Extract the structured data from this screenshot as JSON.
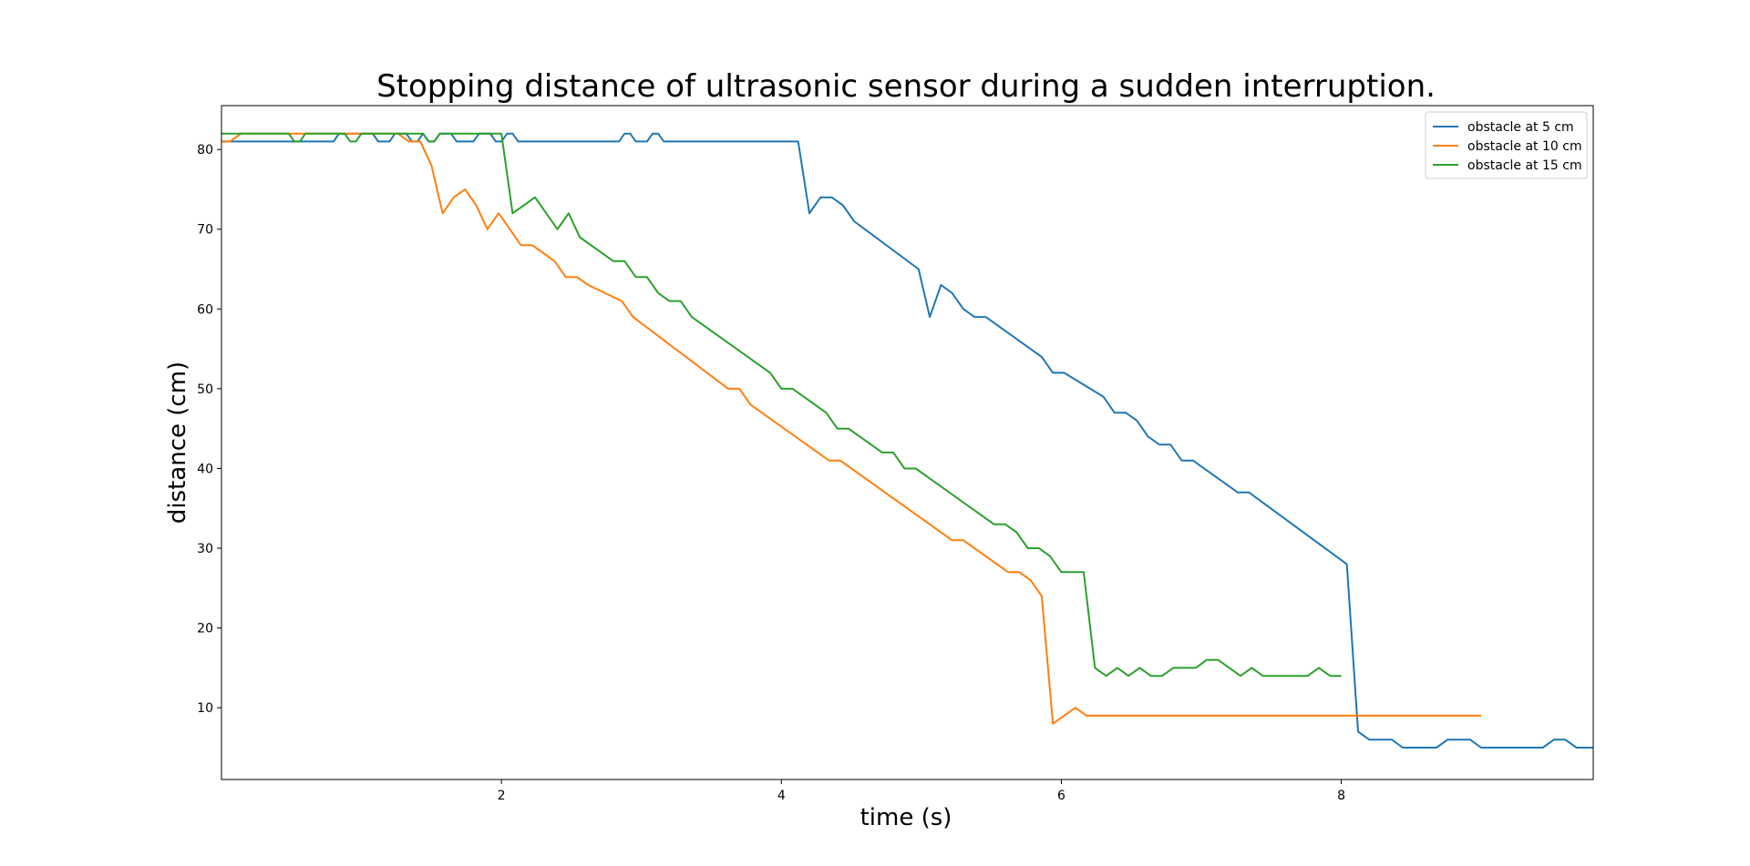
{
  "chart_data": {
    "type": "line",
    "title": "Stopping distance of ultrasonic sensor during a sudden interruption.",
    "xlabel": "time (s)",
    "ylabel": "distance (cm)",
    "xlim": [
      0.0,
      9.8
    ],
    "ylim": [
      1.0,
      85.5
    ],
    "xticks": [
      2,
      4,
      6,
      8
    ],
    "yticks": [
      10,
      20,
      30,
      40,
      50,
      60,
      70,
      80
    ],
    "grid": false,
    "legend": "top-right",
    "series": [
      {
        "name": "obstacle at 5 cm",
        "color": "#1f77b4",
        "x": [
          0.0,
          0.4,
          0.44,
          0.48,
          0.52,
          0.56,
          0.6,
          0.8,
          0.84,
          0.88,
          0.92,
          0.96,
          1.0,
          1.04,
          1.08,
          1.12,
          1.16,
          1.2,
          1.24,
          1.28,
          1.32,
          1.36,
          1.4,
          1.44,
          1.48,
          1.52,
          1.56,
          1.6,
          1.64,
          1.68,
          1.72,
          1.76,
          1.8,
          1.84,
          1.88,
          1.92,
          1.96,
          2.0,
          2.04,
          2.08,
          2.12,
          2.16,
          2.2,
          2.24,
          2.8,
          2.84,
          2.88,
          2.92,
          2.96,
          3.0,
          3.04,
          3.08,
          3.12,
          3.16,
          3.2,
          3.24,
          3.28,
          3.32,
          3.36,
          4.12,
          4.2,
          4.28,
          4.36,
          4.44,
          4.52,
          4.98,
          5.06,
          5.14,
          5.22,
          5.3,
          5.38,
          5.46,
          5.86,
          5.94,
          6.02,
          6.3,
          6.38,
          6.46,
          6.54,
          6.62,
          6.7,
          6.78,
          6.86,
          6.94,
          7.26,
          7.34,
          8.04,
          8.12,
          8.2,
          8.28,
          8.36,
          8.44,
          8.68,
          8.76,
          8.84,
          8.92,
          9.0,
          9.08,
          9.44,
          9.52,
          9.6,
          9.68,
          9.8
        ],
        "values": [
          81,
          81,
          81,
          81,
          81,
          81,
          81,
          81,
          82,
          82,
          82,
          82,
          82,
          82,
          82,
          81,
          81,
          81,
          82,
          82,
          82,
          81,
          81,
          82,
          81,
          81,
          82,
          82,
          82,
          81,
          81,
          81,
          81,
          82,
          82,
          82,
          81,
          81,
          82,
          82,
          81,
          81,
          81,
          81,
          81,
          81,
          82,
          82,
          81,
          81,
          81,
          82,
          82,
          81,
          81,
          81,
          81,
          81,
          81,
          81,
          72,
          74,
          74,
          73,
          71,
          65,
          59,
          63,
          62,
          60,
          59,
          59,
          54,
          52,
          52,
          49,
          47,
          47,
          46,
          44,
          43,
          43,
          41,
          41,
          37,
          37,
          28,
          7,
          6,
          6,
          6,
          5,
          5,
          6,
          6,
          6,
          5,
          5,
          5,
          6,
          6,
          5,
          5
        ]
      },
      {
        "name": "obstacle at 10 cm",
        "color": "#ff7f0e",
        "x": [
          0.0,
          0.06,
          0.14,
          0.22,
          0.3,
          0.38,
          0.46,
          0.54,
          0.62,
          0.7,
          0.78,
          0.86,
          0.94,
          1.02,
          1.1,
          1.18,
          1.26,
          1.34,
          1.42,
          1.5,
          1.58,
          1.66,
          1.74,
          1.82,
          1.9,
          1.98,
          2.06,
          2.14,
          2.22,
          2.3,
          2.38,
          2.46,
          2.54,
          2.62,
          2.86,
          2.94,
          3.62,
          3.7,
          3.78,
          4.34,
          4.42,
          5.22,
          5.3,
          5.62,
          5.7,
          5.78,
          5.86,
          5.94,
          6.1,
          6.18,
          9.0
        ],
        "values": [
          81,
          81,
          82,
          82,
          82,
          82,
          82,
          82,
          82,
          82,
          82,
          82,
          82,
          82,
          82,
          82,
          82,
          81,
          81,
          78,
          72,
          74,
          75,
          73,
          70,
          72,
          70,
          68,
          68,
          67,
          66,
          64,
          64,
          63,
          61,
          59,
          50,
          50,
          48,
          41,
          41,
          31,
          31,
          27,
          27,
          26,
          24,
          8,
          10,
          9,
          9
        ]
      },
      {
        "name": "obstacle at 15 cm",
        "color": "#2ca02c",
        "x": [
          0.0,
          0.4,
          0.44,
          0.48,
          0.52,
          0.56,
          0.6,
          0.76,
          0.8,
          0.84,
          0.88,
          0.92,
          0.96,
          1.0,
          1.04,
          1.08,
          1.12,
          1.16,
          1.2,
          1.24,
          1.28,
          1.32,
          1.36,
          1.4,
          1.44,
          1.48,
          1.52,
          1.56,
          1.6,
          1.84,
          1.88,
          1.92,
          2.0,
          2.08,
          2.16,
          2.24,
          2.4,
          2.48,
          2.56,
          2.8,
          2.88,
          2.96,
          3.04,
          3.12,
          3.2,
          3.28,
          3.36,
          3.92,
          4.0,
          4.08,
          4.32,
          4.4,
          4.48,
          4.72,
          4.8,
          4.88,
          4.96,
          5.52,
          5.6,
          5.68,
          5.76,
          5.84,
          5.92,
          6.0,
          6.08,
          6.16,
          6.24,
          6.32,
          6.4,
          6.48,
          6.56,
          6.64,
          6.72,
          6.8,
          6.88,
          6.96,
          7.04,
          7.12,
          7.2,
          7.28,
          7.36,
          7.44,
          7.76,
          7.84,
          7.92,
          8.0
        ],
        "values": [
          82,
          82,
          82,
          82,
          81,
          81,
          82,
          82,
          82,
          82,
          82,
          81,
          81,
          82,
          82,
          82,
          82,
          82,
          82,
          82,
          82,
          82,
          82,
          82,
          82,
          81,
          81,
          82,
          82,
          82,
          82,
          82,
          82,
          72,
          73,
          74,
          70,
          72,
          69,
          66,
          66,
          64,
          64,
          62,
          61,
          61,
          59,
          52,
          50,
          50,
          47,
          45,
          45,
          42,
          42,
          40,
          40,
          33,
          33,
          32,
          30,
          30,
          29,
          27,
          27,
          27,
          15,
          14,
          15,
          14,
          15,
          14,
          14,
          15,
          15,
          15,
          16,
          16,
          15,
          14,
          15,
          14,
          14,
          15,
          14,
          14
        ]
      }
    ]
  }
}
